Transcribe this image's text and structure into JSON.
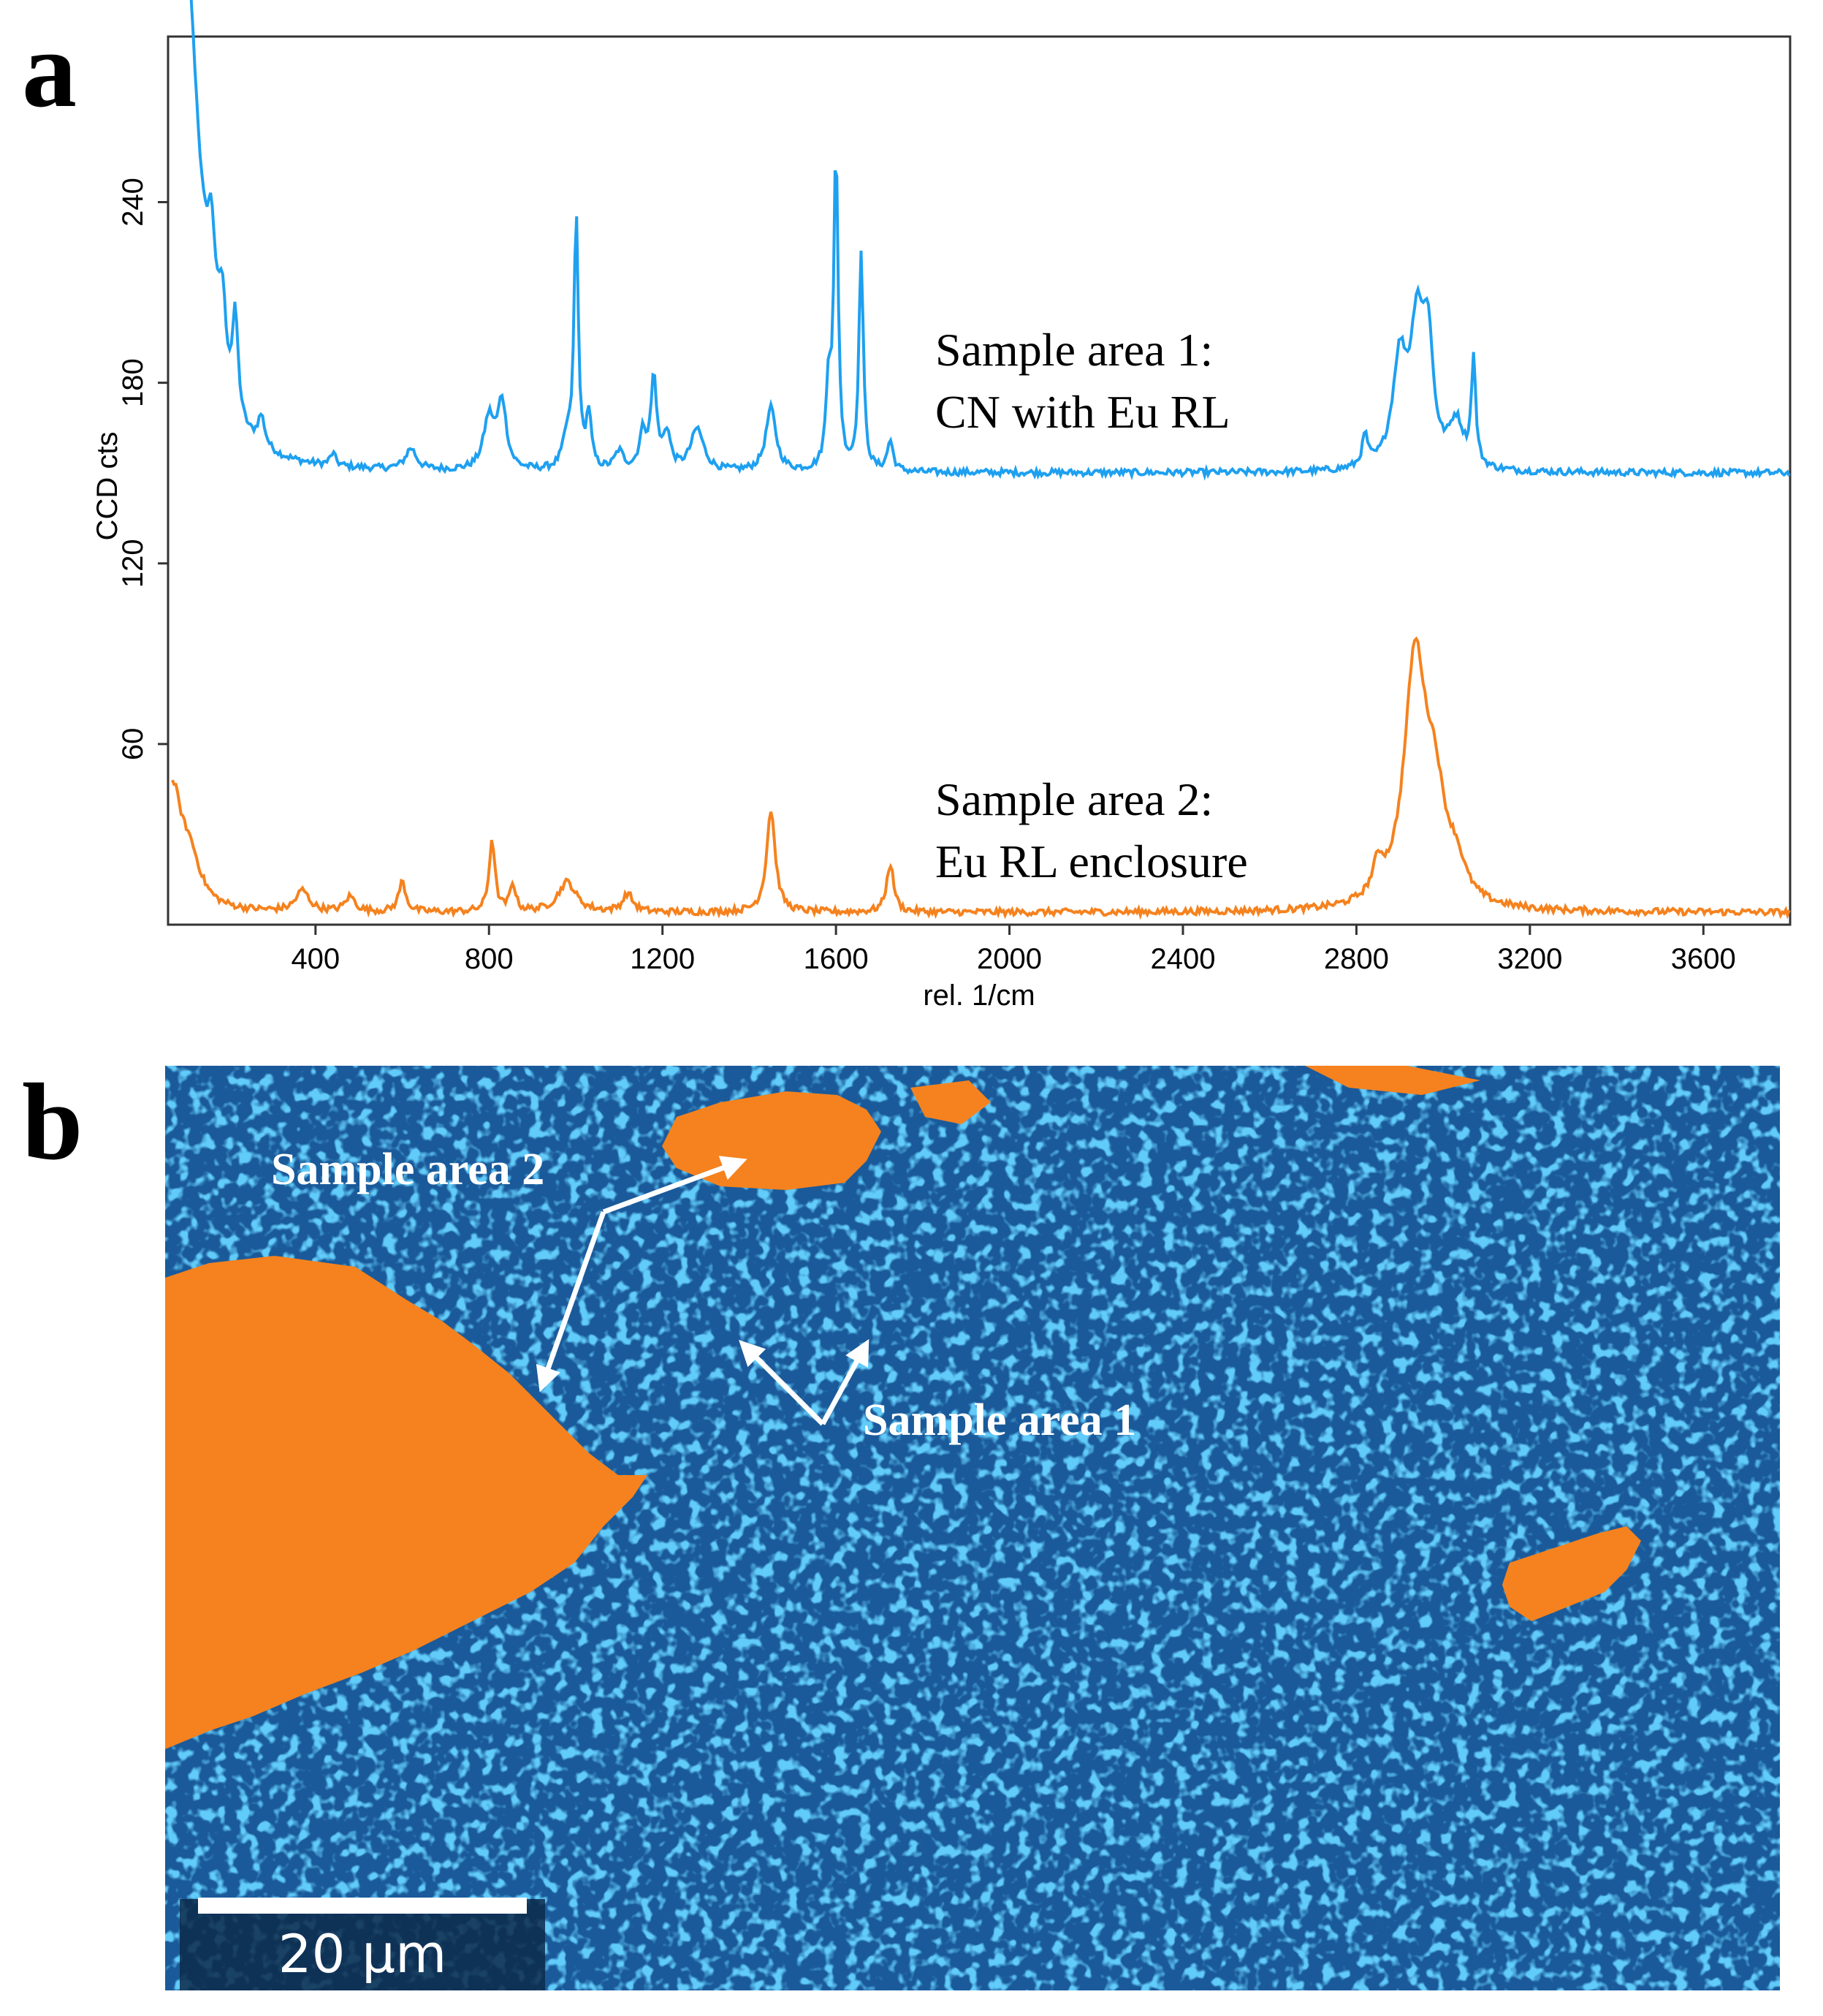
{
  "panel_a_letter": "a",
  "panel_b_letter": "b",
  "chart_data": {
    "type": "line",
    "xlabel": "rel. 1/cm",
    "ylabel": "CCD cts",
    "xlim": [
      60,
      3800
    ],
    "ylim": [
      0,
      295
    ],
    "x_ticks": [
      400,
      800,
      1200,
      1600,
      2000,
      2400,
      2800,
      3200,
      3600
    ],
    "y_ticks": [
      60,
      120,
      180,
      240
    ],
    "grid": false,
    "series": [
      {
        "name": "Sample area 1: CN with Eu RL",
        "color": "#1ea0f0",
        "peaks": [
          {
            "x": 70,
            "y": 270,
            "w": 18
          },
          {
            "x": 105,
            "y": 120,
            "w": 40
          },
          {
            "x": 160,
            "y": 35,
            "w": 12
          },
          {
            "x": 185,
            "y": 28,
            "w": 10
          },
          {
            "x": 215,
            "y": 33,
            "w": 8
          },
          {
            "x": 275,
            "y": 10,
            "w": 10
          },
          {
            "x": 440,
            "y": 4,
            "w": 8
          },
          {
            "x": 620,
            "y": 7,
            "w": 15
          },
          {
            "x": 800,
            "y": 17,
            "w": 15
          },
          {
            "x": 830,
            "y": 22,
            "w": 12
          },
          {
            "x": 980,
            "y": 10,
            "w": 12
          },
          {
            "x": 1001,
            "y": 83,
            "w": 6
          },
          {
            "x": 1030,
            "y": 18,
            "w": 7
          },
          {
            "x": 1100,
            "y": 6,
            "w": 12
          },
          {
            "x": 1155,
            "y": 12,
            "w": 10
          },
          {
            "x": 1180,
            "y": 30,
            "w": 8
          },
          {
            "x": 1210,
            "y": 12,
            "w": 10
          },
          {
            "x": 1280,
            "y": 14,
            "w": 18
          },
          {
            "x": 1450,
            "y": 21,
            "w": 14
          },
          {
            "x": 1583,
            "y": 28,
            "w": 7
          },
          {
            "x": 1600,
            "y": 104,
            "w": 6
          },
          {
            "x": 1658,
            "y": 73,
            "w": 6
          },
          {
            "x": 1725,
            "y": 10,
            "w": 8
          },
          {
            "x": 2820,
            "y": 10,
            "w": 8
          },
          {
            "x": 2900,
            "y": 35,
            "w": 20
          },
          {
            "x": 2940,
            "y": 44,
            "w": 18
          },
          {
            "x": 2965,
            "y": 38,
            "w": 14
          },
          {
            "x": 3030,
            "y": 15,
            "w": 20
          },
          {
            "x": 3070,
            "y": 35,
            "w": 6
          }
        ],
        "baseline": 150
      },
      {
        "name": "Sample area 2: Eu RL enclosure",
        "color": "#f5821e",
        "peaks": [
          {
            "x": 70,
            "y": 38,
            "w": 25
          },
          {
            "x": 110,
            "y": 15,
            "w": 30
          },
          {
            "x": 370,
            "y": 7,
            "w": 18
          },
          {
            "x": 480,
            "y": 5,
            "w": 14
          },
          {
            "x": 600,
            "y": 10,
            "w": 10
          },
          {
            "x": 807,
            "y": 24,
            "w": 8
          },
          {
            "x": 855,
            "y": 9,
            "w": 8
          },
          {
            "x": 980,
            "y": 10,
            "w": 25
          },
          {
            "x": 1120,
            "y": 6,
            "w": 14
          },
          {
            "x": 1450,
            "y": 34,
            "w": 12
          },
          {
            "x": 1725,
            "y": 16,
            "w": 10
          },
          {
            "x": 2850,
            "y": 10,
            "w": 15
          },
          {
            "x": 2935,
            "y": 80,
            "w": 30
          },
          {
            "x": 2980,
            "y": 32,
            "w": 30
          },
          {
            "x": 3030,
            "y": 10,
            "w": 25
          }
        ],
        "baseline": 4
      }
    ],
    "annotations": [
      {
        "line1": "Sample area 1:",
        "line2": "CN with Eu RL"
      },
      {
        "line1": "Sample area 2:",
        "line2": "Eu RL enclosure"
      }
    ]
  },
  "map": {
    "label_area_2": "Sample area 2",
    "label_area_1": "Sample area 1",
    "scale_bar": "20 μm",
    "colors": {
      "background": "#1a5a9a",
      "speckle": "#1f9bf0",
      "enclosure": "#f5821e",
      "label": "#ffffff"
    }
  }
}
